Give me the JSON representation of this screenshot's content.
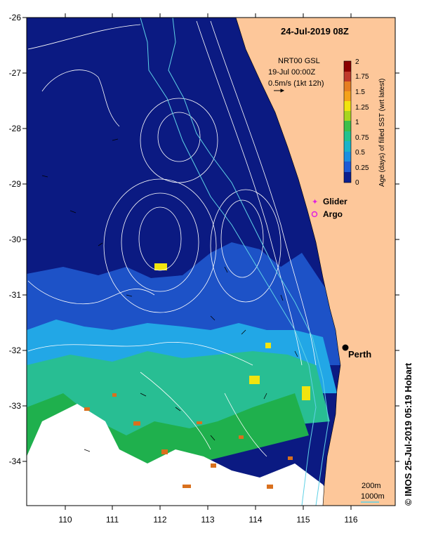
{
  "map": {
    "title": "24-Jul-2019 08Z",
    "product": {
      "line1": "NRT00 GSL",
      "line2": "19-Jul 00:00Z",
      "line3": "0.5m/s (1kt 12h)"
    },
    "latitude_ticks": [
      "-26",
      "-27",
      "-28",
      "-29",
      "-30",
      "-31",
      "-32",
      "-33",
      "-34"
    ],
    "longitude_ticks": [
      "110",
      "111",
      "112",
      "113",
      "114",
      "115",
      "116"
    ],
    "colorbar": {
      "label": "Age (days) of filled SST (wrt latest)",
      "ticks": [
        "2",
        "1.75",
        "1.5",
        "1.25",
        "1",
        "0.75",
        "0.5",
        "0.25",
        "0"
      ],
      "colors": [
        "#8b0000",
        "#c0392b",
        "#e67e22",
        "#f4a21a",
        "#f1e40f",
        "#a8d51e",
        "#3cbf4a",
        "#22c28e",
        "#1ab3c9",
        "#1c8fe0",
        "#1d5bd6",
        "#0b1f8f"
      ]
    },
    "legend": {
      "glider": "Glider",
      "argo": "Argo",
      "glider_color": "#e020e0",
      "argo_color": "#e020e0"
    },
    "city": {
      "name": "Perth"
    },
    "scale": {
      "depth1": "200m",
      "depth2": "1000m"
    },
    "colors": {
      "ocean_deep": "#0b1a82",
      "ocean_mid": "#1d52c7",
      "ocean_light": "#22a7e6",
      "ocean_green": "#28be93",
      "land": "#fdc79a",
      "no_data": "#ffffff"
    }
  },
  "credit": "© IMOS 25-Jul-2019 05:19 Hobart"
}
